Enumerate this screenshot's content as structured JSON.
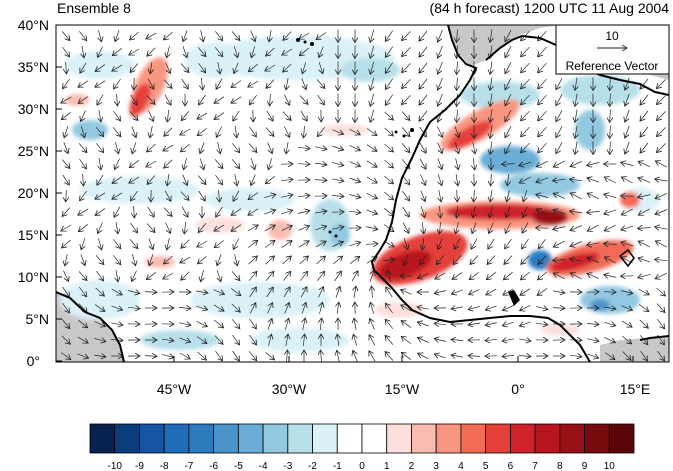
{
  "title_left": "Ensemble 8",
  "title_right": "(84 h forecast) 1200 UTC 11 Aug 2004",
  "lat_labels": [
    "40°N",
    "35°N",
    "30°N",
    "25°N",
    "20°N",
    "15°N",
    "10°N",
    "5°N",
    "0°"
  ],
  "lon_labels": [
    "45°W",
    "30°W",
    "15°W",
    "0°",
    "15°E"
  ],
  "reference_vector": {
    "value": "10",
    "label": "Reference Vector"
  },
  "colorbar": {
    "labels": [
      "-10",
      "-9",
      "-8",
      "-7",
      "-6",
      "-5",
      "-4",
      "-3",
      "-2",
      "-1",
      "0",
      "1",
      "2",
      "3",
      "4",
      "5",
      "6",
      "7",
      "8",
      "9",
      "10"
    ],
    "colors": [
      "#08224f",
      "#0a3d7a",
      "#1455a3",
      "#1f6db8",
      "#2c7bc0",
      "#4a94cc",
      "#6aadd6",
      "#92c8e0",
      "#b7dfe9",
      "#daf1f7",
      "#ffffff",
      "#ffffff",
      "#fde0dd",
      "#fbbcb0",
      "#f99680",
      "#f26b55",
      "#e5413a",
      "#cf222a",
      "#b7151f",
      "#981016",
      "#790b0e",
      "#5a0608"
    ]
  },
  "colors": {
    "land_shade": "#c8c8c8",
    "coast": "#000000",
    "vectors": "#222222"
  }
}
